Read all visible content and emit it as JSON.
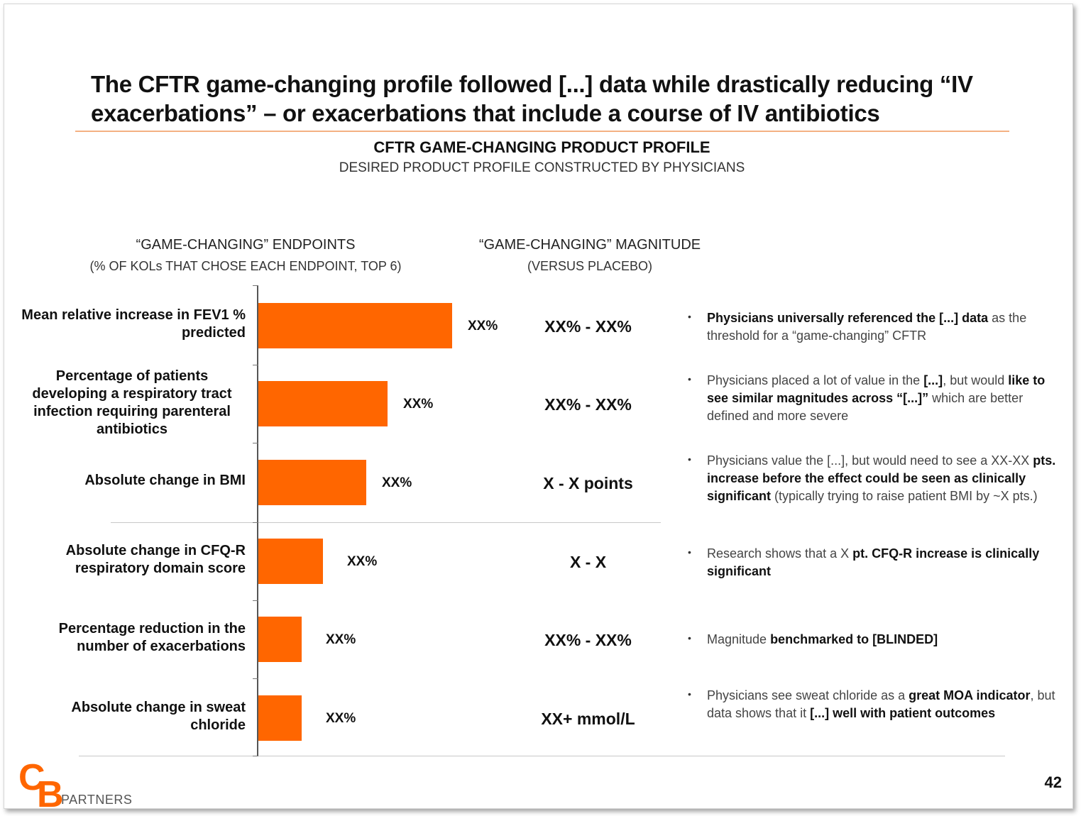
{
  "colors": {
    "accent": "#FF6600",
    "rule": "#F4B183"
  },
  "title": "The CFTR game-changing profile followed [...] data while drastically reducing “IV exacerbations” –  or exacerbations that include a course of IV antibiotics",
  "subtitle": "CFTR GAME-CHANGING PRODUCT PROFILE",
  "subtitle2": "DESIRED PRODUCT PROFILE CONSTRUCTED BY PHYSICIANS",
  "columns": {
    "endpoints": {
      "line1": "“GAME-CHANGING” ENDPOINTS",
      "line2": "(% OF KOLs THAT CHOSE EACH ENDPOINT, TOP 6)"
    },
    "magnitude": {
      "line1": "“GAME-CHANGING” MAGNITUDE",
      "line2": "(VERSUS PLACEBO)"
    }
  },
  "chart_data": {
    "type": "bar",
    "orientation": "horizontal",
    "categories": [
      "Mean relative increase in FEV1 % predicted",
      "Percentage of patients developing a respiratory tract infection requiring parenteral antibiotics",
      "Absolute change in BMI",
      "Absolute change in CFQ-R respiratory domain score",
      "Percentage reduction in the number of exacerbations",
      "Absolute change in sweat chloride"
    ],
    "relative_lengths": [
      1.0,
      0.665,
      0.555,
      0.335,
      0.225,
      0.225
    ],
    "value_labels": [
      "XX%",
      "XX%",
      "XX%",
      "XX%",
      "XX%",
      "XX%"
    ],
    "magnitudes": [
      "XX% - XX%",
      "XX% - XX%",
      "X - X points",
      "X - X",
      "XX% - XX%",
      "XX+ mmol/L"
    ],
    "grid": false,
    "legend": "none"
  },
  "notes": [
    {
      "parts": [
        {
          "t": "Physicians universally referenced the [...] data",
          "b": true
        },
        {
          "t": " as the threshold  for a “game-changing” CFTR",
          "b": false
        }
      ]
    },
    {
      "parts": [
        {
          "t": "Physicians placed a lot of value  in the ",
          "b": false
        },
        {
          "t": "[...]",
          "b": true
        },
        {
          "t": ", but would ",
          "b": false
        },
        {
          "t": "like to see similar magnitudes across “[...]”",
          "b": true
        },
        {
          "t": " which are better defined and more severe",
          "b": false
        }
      ]
    },
    {
      "parts": [
        {
          "t": "Physicians value  the [...], but would  need to see a XX-XX ",
          "b": false
        },
        {
          "t": "pts. increase before the effect could be seen as clinically  significant",
          "b": true
        },
        {
          "t": "  (typically trying to raise patient BMI by ~X pts.)",
          "b": false
        }
      ]
    },
    {
      "parts": [
        {
          "t": "Research shows that a X ",
          "b": false
        },
        {
          "t": "pt. CFQ-R increase is clinically  significant",
          "b": true
        }
      ]
    },
    {
      "parts": [
        {
          "t": "Magnitude  ",
          "b": false
        },
        {
          "t": "benchmarked to [BLINDED]",
          "b": true
        }
      ]
    },
    {
      "parts": [
        {
          "t": "Physicians see sweat  chloride as a ",
          "b": false
        },
        {
          "t": "great MOA indicator",
          "b": true
        },
        {
          "t": ", but data shows that it ",
          "b": false
        },
        {
          "t": "[...] well with patient outcomes",
          "b": true
        }
      ]
    }
  ],
  "logo": {
    "c": "C",
    "b": "B",
    "text": "PARTNERS"
  },
  "page_number": "42"
}
